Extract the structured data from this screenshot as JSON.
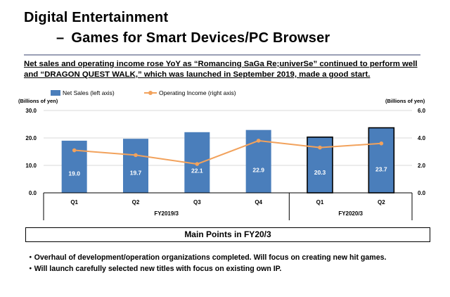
{
  "header": {
    "title": "Digital Entertainment",
    "subtitle_dash": "–",
    "subtitle": "Games for Smart Devices/PC Browser"
  },
  "headline": {
    "line1": "Net sales and operating income rose YoY as “Romancing SaGa Re;univerSe” continued to perform well",
    "line2": "and “DRAGON QUEST WALK,” which was launched in September 2019, made a good start."
  },
  "chart_data": {
    "type": "bar",
    "categories": [
      "Q1",
      "Q2",
      "Q3",
      "Q4",
      "Q1",
      "Q2"
    ],
    "groups": [
      {
        "label": "FY2019/3",
        "count": 4
      },
      {
        "label": "FY2020/3",
        "count": 2
      }
    ],
    "series": [
      {
        "name": "Net Sales (left axis)",
        "type": "bar",
        "axis": "left",
        "values": [
          19.0,
          19.7,
          22.1,
          22.9,
          20.3,
          23.7
        ],
        "data_labels": [
          "19.0",
          "19.7",
          "22.1",
          "22.9",
          "20.3",
          "23.7"
        ]
      },
      {
        "name": "Operating Income (right axis)",
        "type": "line",
        "axis": "right",
        "values": [
          3.1,
          2.75,
          2.1,
          3.8,
          3.3,
          3.6
        ]
      }
    ],
    "highlighted": [
      false,
      false,
      false,
      false,
      true,
      true
    ],
    "left_axis": {
      "label": "(Billions of yen)",
      "range": [
        0,
        30
      ],
      "ticks": [
        "0.0",
        "10.0",
        "20.0",
        "30.0"
      ]
    },
    "right_axis": {
      "label": "(Billions of yen)",
      "range": [
        0,
        6
      ],
      "ticks": [
        "0.0",
        "2.0",
        "4.0",
        "6.0"
      ]
    },
    "colors": {
      "bar": "#4a7ebb",
      "line": "#f2a25c",
      "grid": "#d9d9d9"
    },
    "grid": true,
    "legend_position": "top-left"
  },
  "main_points": {
    "title": "Main Points in FY20/3",
    "bullets": [
      "・Overhaul of development/operation organizations completed. Will focus on creating new hit games.",
      "・Will launch carefully selected new titles with focus on existing own IP."
    ]
  }
}
